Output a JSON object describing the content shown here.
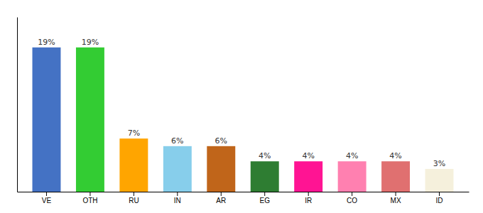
{
  "chart_data": {
    "type": "bar",
    "categories": [
      "VE",
      "OTH",
      "RU",
      "IN",
      "AR",
      "EG",
      "IR",
      "CO",
      "MX",
      "ID"
    ],
    "values": [
      19,
      19,
      7,
      6,
      6,
      4,
      4,
      4,
      4,
      3
    ],
    "value_labels": [
      "19%",
      "19%",
      "7%",
      "6%",
      "6%",
      "4%",
      "4%",
      "4%",
      "4%",
      "3%"
    ],
    "colors": [
      "#4472C4",
      "#33CC33",
      "#FFA500",
      "#87CEEB",
      "#C0651A",
      "#2E7D32",
      "#FF1493",
      "#FF80B0",
      "#E07070",
      "#F5F0DC"
    ],
    "ylim": [
      0,
      23
    ],
    "data_labels": true,
    "tick_labels": "x",
    "grid": false
  }
}
